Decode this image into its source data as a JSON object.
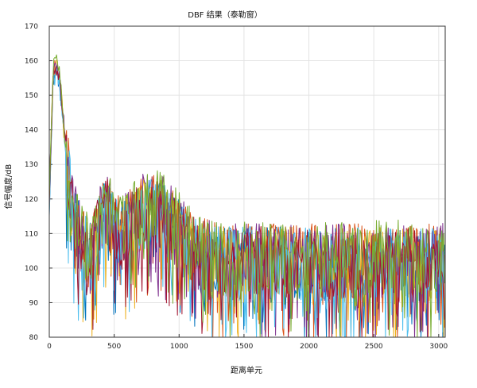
{
  "chart_data": {
    "type": "line",
    "title": "DBF    结果（泰勒窗）",
    "xlabel": "距离单元",
    "ylabel": "信号幅度/dB",
    "xlim": [
      0,
      3050
    ],
    "ylim": [
      80,
      170
    ],
    "xticks": [
      0,
      500,
      1000,
      1500,
      2000,
      2500,
      3000
    ],
    "yticks": [
      80,
      90,
      100,
      110,
      120,
      130,
      140,
      150,
      160,
      170
    ],
    "grid": true,
    "legend": "none",
    "series": [
      {
        "color": "#0072BD",
        "profile": [
          [
            0,
            118
          ],
          [
            30,
            155
          ],
          [
            60,
            158
          ],
          [
            90,
            150
          ],
          [
            120,
            136
          ],
          [
            150,
            126
          ],
          [
            180,
            114
          ],
          [
            250,
            108
          ],
          [
            320,
            104
          ],
          [
            400,
            114
          ],
          [
            450,
            118
          ],
          [
            500,
            112
          ],
          [
            550,
            109
          ],
          [
            600,
            112
          ],
          [
            700,
            116
          ],
          [
            800,
            117
          ],
          [
            900,
            115
          ],
          [
            1000,
            110
          ],
          [
            1100,
            105
          ],
          [
            1300,
            102
          ],
          [
            1600,
            102
          ],
          [
            2000,
            102
          ],
          [
            2500,
            102
          ],
          [
            3050,
            102
          ]
        ]
      },
      {
        "color": "#D95319",
        "profile": [
          [
            0,
            120
          ],
          [
            30,
            157
          ],
          [
            60,
            159
          ],
          [
            90,
            151
          ],
          [
            120,
            137
          ],
          [
            150,
            127
          ],
          [
            180,
            115
          ],
          [
            250,
            109
          ],
          [
            320,
            105
          ],
          [
            400,
            115
          ],
          [
            450,
            119
          ],
          [
            500,
            113
          ],
          [
            550,
            110
          ],
          [
            600,
            113
          ],
          [
            700,
            117
          ],
          [
            800,
            118
          ],
          [
            900,
            116
          ],
          [
            1000,
            111
          ],
          [
            1100,
            106
          ],
          [
            1300,
            103
          ],
          [
            1600,
            103
          ],
          [
            2000,
            103
          ],
          [
            2500,
            103
          ],
          [
            3050,
            103
          ]
        ]
      },
      {
        "color": "#EDB120",
        "profile": [
          [
            0,
            119
          ],
          [
            30,
            156
          ],
          [
            60,
            160
          ],
          [
            90,
            150
          ],
          [
            120,
            137
          ],
          [
            150,
            126
          ],
          [
            180,
            114
          ],
          [
            250,
            108
          ],
          [
            320,
            104
          ],
          [
            400,
            114
          ],
          [
            450,
            118
          ],
          [
            500,
            112
          ],
          [
            550,
            109
          ],
          [
            600,
            112
          ],
          [
            700,
            116
          ],
          [
            800,
            117
          ],
          [
            900,
            115
          ],
          [
            1000,
            110
          ],
          [
            1100,
            105
          ],
          [
            1300,
            102
          ],
          [
            1600,
            102
          ],
          [
            2000,
            102
          ],
          [
            2500,
            102
          ],
          [
            3050,
            102
          ]
        ]
      },
      {
        "color": "#7E2F8E",
        "profile": [
          [
            0,
            121
          ],
          [
            30,
            158
          ],
          [
            60,
            159
          ],
          [
            90,
            152
          ],
          [
            120,
            138
          ],
          [
            150,
            128
          ],
          [
            180,
            116
          ],
          [
            250,
            109
          ],
          [
            320,
            105
          ],
          [
            400,
            115
          ],
          [
            450,
            119
          ],
          [
            500,
            113
          ],
          [
            550,
            110
          ],
          [
            600,
            113
          ],
          [
            700,
            117
          ],
          [
            800,
            118
          ],
          [
            900,
            116
          ],
          [
            1000,
            111
          ],
          [
            1100,
            106
          ],
          [
            1300,
            103
          ],
          [
            1600,
            103
          ],
          [
            2000,
            103
          ],
          [
            2500,
            103
          ],
          [
            3050,
            103
          ]
        ]
      },
      {
        "color": "#4DBEEE",
        "profile": [
          [
            0,
            118
          ],
          [
            30,
            155
          ],
          [
            60,
            157
          ],
          [
            90,
            150
          ],
          [
            120,
            136
          ],
          [
            150,
            126
          ],
          [
            180,
            114
          ],
          [
            250,
            108
          ],
          [
            320,
            104
          ],
          [
            400,
            114
          ],
          [
            450,
            118
          ],
          [
            500,
            112
          ],
          [
            550,
            109
          ],
          [
            600,
            112
          ],
          [
            700,
            116
          ],
          [
            800,
            117
          ],
          [
            900,
            115
          ],
          [
            1000,
            110
          ],
          [
            1100,
            105
          ],
          [
            1300,
            102
          ],
          [
            1600,
            102
          ],
          [
            2000,
            102
          ],
          [
            2500,
            102
          ],
          [
            3050,
            102
          ]
        ]
      },
      {
        "color": "#A2142F",
        "profile": [
          [
            0,
            119
          ],
          [
            30,
            156
          ],
          [
            60,
            158
          ],
          [
            90,
            151
          ],
          [
            120,
            137
          ],
          [
            150,
            127
          ],
          [
            180,
            115
          ],
          [
            250,
            108
          ],
          [
            320,
            104
          ],
          [
            400,
            114
          ],
          [
            450,
            118
          ],
          [
            500,
            112
          ],
          [
            550,
            109
          ],
          [
            600,
            112
          ],
          [
            700,
            116
          ],
          [
            800,
            117
          ],
          [
            900,
            115
          ],
          [
            1000,
            110
          ],
          [
            1100,
            105
          ],
          [
            1300,
            102
          ],
          [
            1600,
            102
          ],
          [
            2000,
            102
          ],
          [
            2500,
            102
          ],
          [
            3050,
            102
          ]
        ]
      },
      {
        "color": "#77AC30",
        "profile": [
          [
            0,
            120
          ],
          [
            30,
            158
          ],
          [
            60,
            161
          ],
          [
            90,
            152
          ],
          [
            120,
            138
          ],
          [
            150,
            128
          ],
          [
            180,
            116
          ],
          [
            250,
            110
          ],
          [
            320,
            106
          ],
          [
            400,
            116
          ],
          [
            450,
            120
          ],
          [
            500,
            114
          ],
          [
            550,
            111
          ],
          [
            600,
            114
          ],
          [
            700,
            118
          ],
          [
            800,
            119
          ],
          [
            900,
            117
          ],
          [
            1000,
            112
          ],
          [
            1100,
            107
          ],
          [
            1300,
            104
          ],
          [
            1600,
            104
          ],
          [
            2000,
            104
          ],
          [
            2500,
            104
          ],
          [
            3050,
            104
          ]
        ]
      }
    ]
  }
}
